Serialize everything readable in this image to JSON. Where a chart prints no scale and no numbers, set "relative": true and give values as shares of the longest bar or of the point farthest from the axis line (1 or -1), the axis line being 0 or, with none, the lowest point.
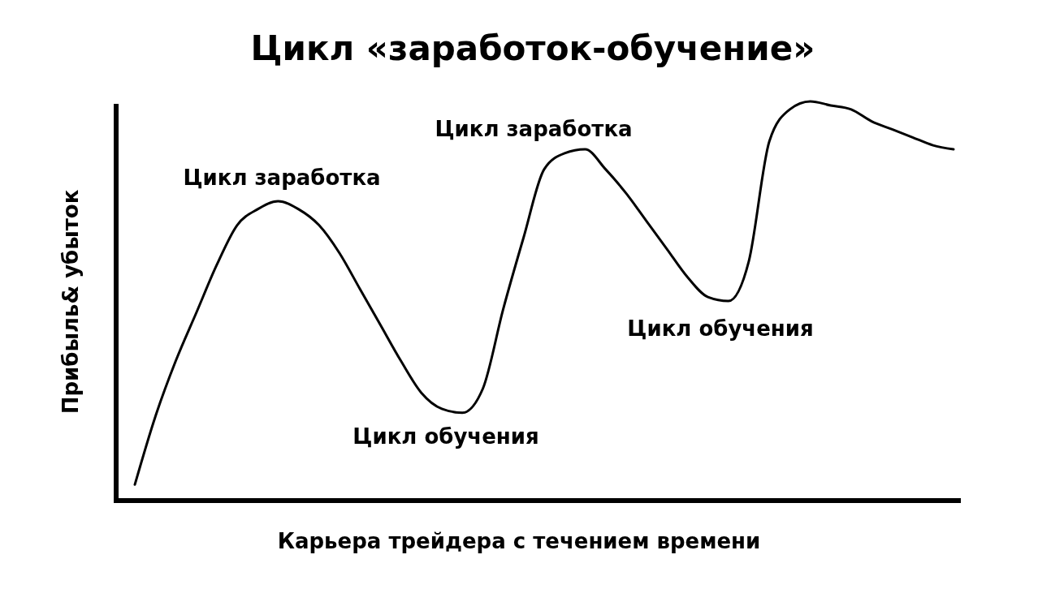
{
  "chart_data": {
    "type": "line",
    "title": "Цикл «заработок-обучение»",
    "xlabel": "Карьера трейдера с течением времени",
    "ylabel": "Прибыль& убыток",
    "relative": true,
    "categories": [
      null,
      null,
      null,
      null,
      null,
      null,
      null,
      null,
      null,
      null,
      null,
      null,
      null,
      null,
      null,
      null,
      null,
      null,
      null,
      null,
      null,
      null,
      null,
      null,
      null,
      null,
      null,
      null,
      null,
      null,
      null,
      null,
      null,
      null,
      null,
      null,
      null,
      null,
      null,
      null,
      null
    ],
    "series": [
      {
        "color": "#000000",
        "values": [
          0.04,
          0.21,
          0.35,
          0.47,
          0.59,
          0.69,
          0.73,
          0.75,
          0.73,
          0.69,
          0.62,
          0.53,
          0.44,
          0.35,
          0.27,
          0.23,
          0.22,
          0.28,
          0.48,
          0.66,
          0.83,
          0.87,
          0.88,
          0.83,
          0.77,
          0.7,
          0.63,
          0.56,
          0.51,
          0.5,
          0.6,
          0.9,
          0.98,
          1.0,
          0.99,
          0.98,
          0.95,
          0.93,
          0.91,
          0.89,
          0.88
        ]
      }
    ],
    "annotations": [
      "Цикл заработка",
      "Цикл заработка",
      "Цикл обучения",
      "Цикл обучения"
    ]
  }
}
